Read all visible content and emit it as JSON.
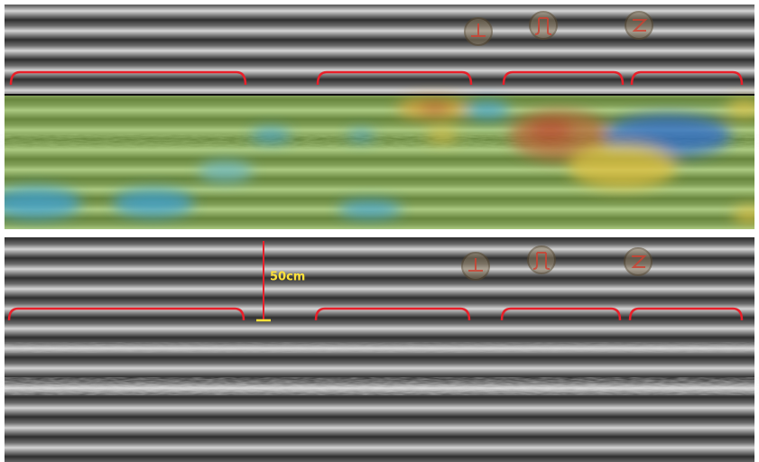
{
  "annotation": {
    "label": "50cm"
  }
}
